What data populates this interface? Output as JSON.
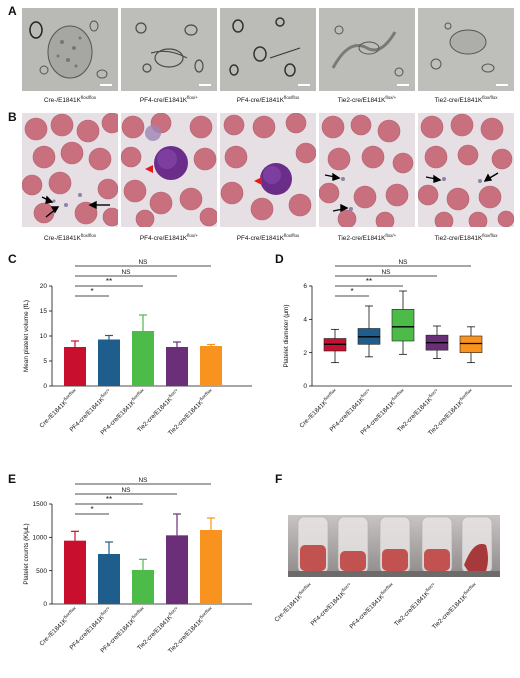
{
  "panel_letters": {
    "a": "A",
    "b": "B",
    "c": "C",
    "d": "D",
    "e": "E",
    "f": "F"
  },
  "genotypes": [
    {
      "base": "Cre-/E1841K",
      "sup": "flox/flox"
    },
    {
      "base": "PF4-cre/E1841K",
      "sup": "flox/+"
    },
    {
      "base": "PF4-cre/E1841K",
      "sup": "flox/flox"
    },
    {
      "base": "Tie2-cre/E1841K",
      "sup": "flox/+"
    },
    {
      "base": "Tie2-cre/E1841K",
      "sup": "flox/flox"
    }
  ],
  "colors": {
    "cre_neg": "#c8102e",
    "pf4_het": "#1f5d8c",
    "pf4_hom": "#4dbb48",
    "tie2_het": "#6b2f7a",
    "tie2_hom": "#f7931e"
  },
  "sig": {
    "ns": "NS",
    "one": "*",
    "two": "**"
  },
  "chart_data": [
    {
      "panel": "C",
      "type": "bar",
      "ylabel": "Mean platelet volume (fL)",
      "ylim": [
        0,
        20
      ],
      "yticks": [
        "0",
        "5",
        "10",
        "15",
        "20"
      ],
      "values": [
        7.8,
        9.3,
        11.0,
        7.8,
        8.0
      ],
      "errors": [
        1.2,
        0.8,
        3.2,
        1.0,
        0.3
      ],
      "brackets": [
        {
          "from": 0,
          "to": 1,
          "label": "*"
        },
        {
          "from": 0,
          "to": 2,
          "label": "**"
        },
        {
          "from": 0,
          "to": 3,
          "label": "NS"
        },
        {
          "from": 0,
          "to": 4,
          "label": "NS"
        }
      ]
    },
    {
      "panel": "D",
      "type": "box",
      "ylabel": "Platelet diameter (μm)",
      "ylim": [
        0,
        6
      ],
      "yticks": [
        "0",
        "2",
        "4",
        "6"
      ],
      "boxes": [
        {
          "min": 1.4,
          "q1": 2.1,
          "median": 2.5,
          "q3": 2.85,
          "max": 3.4
        },
        {
          "min": 1.75,
          "q1": 2.5,
          "median": 2.95,
          "q3": 3.45,
          "max": 4.8
        },
        {
          "min": 1.9,
          "q1": 2.7,
          "median": 3.55,
          "q3": 4.6,
          "max": 5.7
        },
        {
          "min": 1.65,
          "q1": 2.15,
          "median": 2.6,
          "q3": 3.05,
          "max": 3.6
        },
        {
          "min": 1.4,
          "q1": 2.0,
          "median": 2.55,
          "q3": 3.0,
          "max": 3.55
        }
      ],
      "brackets": [
        {
          "from": 0,
          "to": 1,
          "label": "*"
        },
        {
          "from": 0,
          "to": 2,
          "label": "**"
        },
        {
          "from": 0,
          "to": 3,
          "label": "NS"
        },
        {
          "from": 0,
          "to": 4,
          "label": "NS"
        }
      ]
    },
    {
      "panel": "E",
      "type": "bar",
      "ylabel": "Platelet counts (K/μL)",
      "ylim": [
        0,
        1500
      ],
      "yticks": [
        "0",
        "500",
        "1000",
        "1500"
      ],
      "values": [
        950,
        750,
        510,
        1030,
        1110
      ],
      "errors": [
        140,
        180,
        160,
        320,
        180
      ],
      "brackets": [
        {
          "from": 0,
          "to": 1,
          "label": "*"
        },
        {
          "from": 0,
          "to": 2,
          "label": "**"
        },
        {
          "from": 0,
          "to": 3,
          "label": "NS"
        },
        {
          "from": 0,
          "to": 4,
          "label": "NS"
        }
      ]
    }
  ]
}
